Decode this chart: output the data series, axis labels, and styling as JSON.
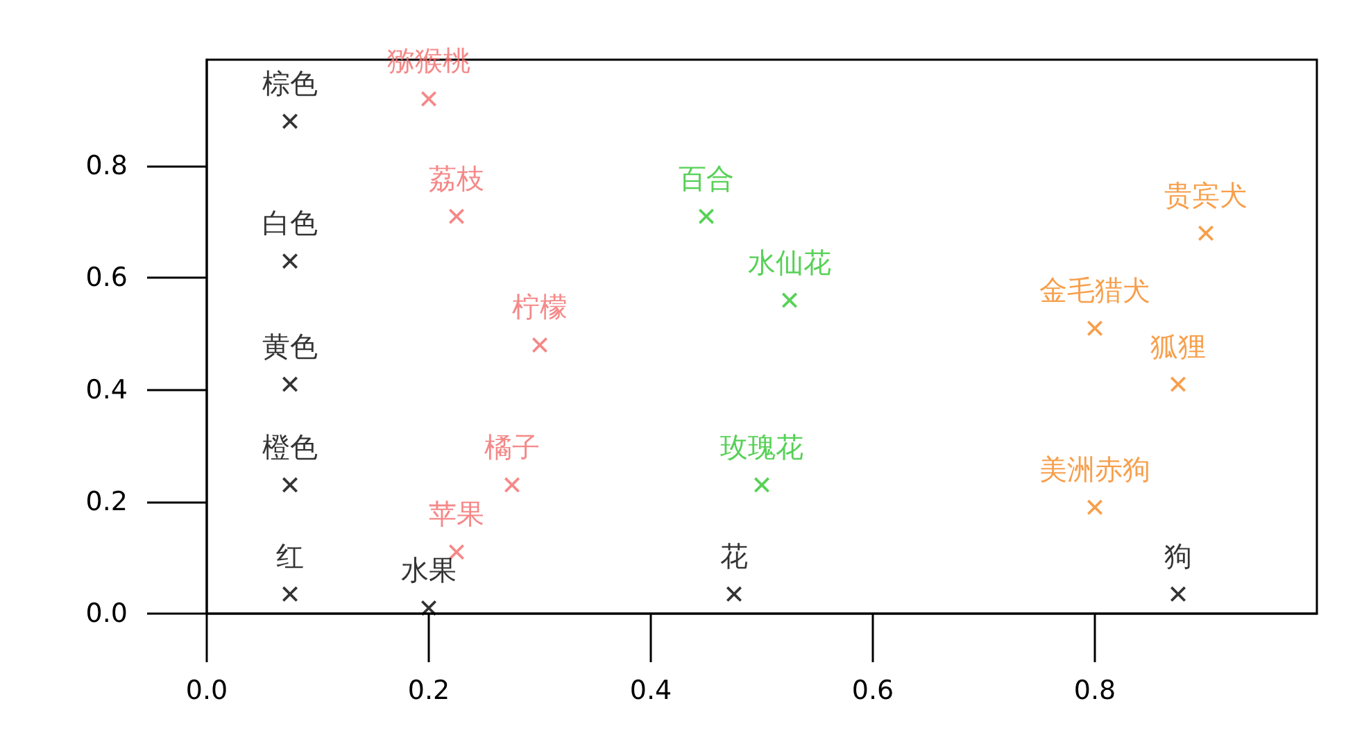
{
  "chart_data": {
    "type": "scatter",
    "xlim": [
      0,
      1
    ],
    "ylim": [
      0,
      0.99
    ],
    "xticks": [
      {
        "value": 0,
        "label": "0.0"
      },
      0.2,
      0.4,
      0.6,
      0.8
    ],
    "yticks": [
      {
        "value": 0,
        "label": "0.0"
      },
      0.2,
      0.4,
      0.6,
      0.8
    ],
    "marker": "cross",
    "series": [
      {
        "color": "#000000",
        "x": [
          0.075,
          0.075,
          0.075,
          0.075,
          0.075,
          0.2,
          0.475,
          0.875
        ],
        "values": [
          0.88,
          0.63,
          0.41,
          0.23,
          0.035,
          0.01,
          0.035,
          0.035
        ],
        "value_labels": [
          "棕色",
          "白色",
          "黄色",
          "橙色",
          "红",
          "水果",
          "花",
          "狗"
        ]
      },
      {
        "color": "#f26a6a",
        "x": [
          0.2,
          0.225,
          0.3,
          0.275,
          0.225
        ],
        "values": [
          0.92,
          0.71,
          0.48,
          0.23,
          0.11
        ],
        "value_labels": [
          "猕猴桃",
          "荔枝",
          "柠檬",
          "橘子",
          "苹果"
        ]
      },
      {
        "color": "#2cc62c",
        "x": [
          0.45,
          0.525,
          0.5
        ],
        "values": [
          0.71,
          0.56,
          0.23
        ],
        "value_labels": [
          "百合",
          "水仙花",
          "玫瑰花"
        ]
      },
      {
        "color": "#f5871f",
        "x": [
          0.9,
          0.8,
          0.875,
          0.8
        ],
        "values": [
          0.68,
          0.51,
          0.41,
          0.19
        ],
        "value_labels": [
          "贵宾犬",
          "金毛猎犬",
          "狐狸",
          "美洲赤狗"
        ]
      }
    ]
  }
}
